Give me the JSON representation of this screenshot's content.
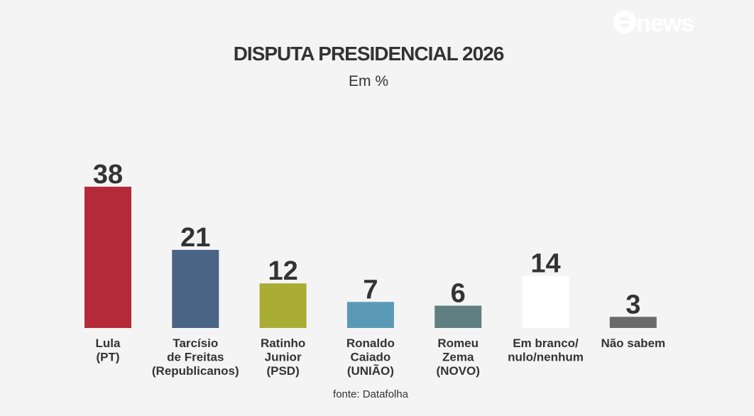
{
  "brand": {
    "logo_text": "news",
    "logo_color": "#ffffff"
  },
  "source": "fonte: Datafolha",
  "chart_data": {
    "type": "bar",
    "title": "DISPUTA PRESIDENCIAL 2026",
    "subtitle": "Em %",
    "xlabel": "",
    "ylabel": "",
    "ylim": [
      0,
      38
    ],
    "grid": false,
    "legend": "none",
    "data_labels": true,
    "categories": [
      [
        "Lula",
        "(PT)"
      ],
      [
        "Tarcísio",
        "de Freitas",
        "(Republicanos)"
      ],
      [
        "Ratinho",
        "Junior",
        "(PSD)"
      ],
      [
        "Ronaldo",
        "Caiado",
        "(UNIÃO)"
      ],
      [
        "Romeu",
        "Zema",
        "(NOVO)"
      ],
      [
        "Em branco/",
        "nulo/nenhum"
      ],
      [
        "Não sabem"
      ]
    ],
    "values": [
      38,
      21,
      12,
      7,
      6,
      14,
      3
    ],
    "colors": [
      "#b52a38",
      "#4a6485",
      "#aaad34",
      "#5b9ab7",
      "#5f7f81",
      "#ffffff",
      "#6a6a6a"
    ]
  }
}
